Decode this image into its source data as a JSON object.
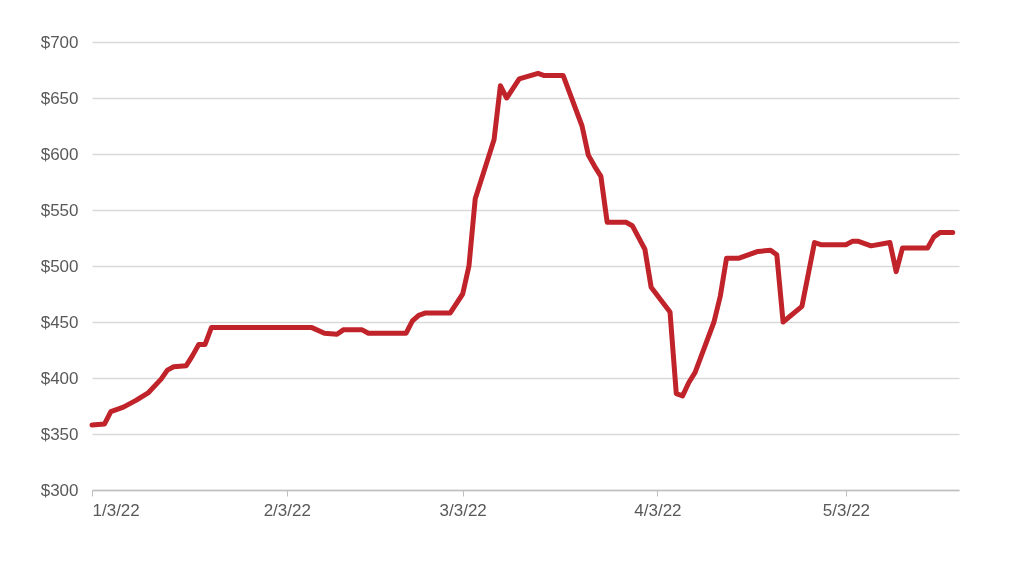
{
  "chart_data": {
    "type": "line",
    "x": [
      "2022-01-03",
      "2022-01-05",
      "2022-01-06",
      "2022-01-08",
      "2022-01-10",
      "2022-01-12",
      "2022-01-14",
      "2022-01-15",
      "2022-01-16",
      "2022-01-18",
      "2022-01-19",
      "2022-01-20",
      "2022-01-21",
      "2022-01-22",
      "2022-02-07",
      "2022-02-09",
      "2022-02-11",
      "2022-02-12",
      "2022-02-15",
      "2022-02-16",
      "2022-02-22",
      "2022-02-23",
      "2022-02-24",
      "2022-02-25",
      "2022-03-01",
      "2022-03-03",
      "2022-03-04",
      "2022-03-05",
      "2022-03-08",
      "2022-03-09",
      "2022-03-10",
      "2022-03-12",
      "2022-03-15",
      "2022-03-16",
      "2022-03-19",
      "2022-03-22",
      "2022-03-23",
      "2022-03-24",
      "2022-03-25",
      "2022-03-26",
      "2022-03-29",
      "2022-03-30",
      "2022-04-01",
      "2022-04-02",
      "2022-04-05",
      "2022-04-06",
      "2022-04-07",
      "2022-04-08",
      "2022-04-09",
      "2022-04-12",
      "2022-04-13",
      "2022-04-14",
      "2022-04-16",
      "2022-04-19",
      "2022-04-21",
      "2022-04-22",
      "2022-04-23",
      "2022-04-26",
      "2022-04-28",
      "2022-04-29",
      "2022-05-03",
      "2022-05-04",
      "2022-05-05",
      "2022-05-07",
      "2022-05-10",
      "2022-05-11",
      "2022-05-12",
      "2022-05-16",
      "2022-05-17",
      "2022-05-18",
      "2022-05-20"
    ],
    "series": [
      {
        "color": "#c0232a",
        "values": [
          358,
          359,
          370,
          374,
          380,
          387,
          399,
          407,
          410,
          411,
          420,
          430,
          430,
          445,
          445,
          440,
          439,
          443,
          443,
          440,
          440,
          451,
          456,
          458,
          458,
          475,
          500,
          560,
          613,
          661,
          650,
          667,
          672,
          670,
          670,
          625,
          599,
          589,
          580,
          539,
          539,
          536,
          515,
          481,
          459,
          386,
          384,
          396,
          405,
          450,
          473,
          507,
          507,
          513,
          514,
          510,
          450,
          464,
          521,
          519,
          519,
          522,
          522,
          518,
          521,
          495,
          516,
          516,
          526,
          530,
          530
        ]
      }
    ],
    "xlim": [
      "2022-01-03",
      "2022-05-21"
    ],
    "xticks": [
      {
        "value": "2022-01-03",
        "label": "1/3/22"
      },
      {
        "value": "2022-02-03",
        "label": "2/3/22"
      },
      {
        "value": "2022-03-03",
        "label": "3/3/22"
      },
      {
        "value": "2022-04-03",
        "label": "4/3/22"
      },
      {
        "value": "2022-05-03",
        "label": "5/3/22"
      }
    ],
    "ylim": [
      300,
      700
    ],
    "yticks": [
      {
        "value": 300,
        "label": "$300"
      },
      {
        "value": 350,
        "label": "$350"
      },
      {
        "value": 400,
        "label": "$400"
      },
      {
        "value": 450,
        "label": "$450"
      },
      {
        "value": 500,
        "label": "$500"
      },
      {
        "value": 550,
        "label": "$550"
      },
      {
        "value": 600,
        "label": "$600"
      },
      {
        "value": 650,
        "label": "$650"
      },
      {
        "value": 700,
        "label": "$700"
      }
    ],
    "grid": "y",
    "line_style": "solid"
  }
}
